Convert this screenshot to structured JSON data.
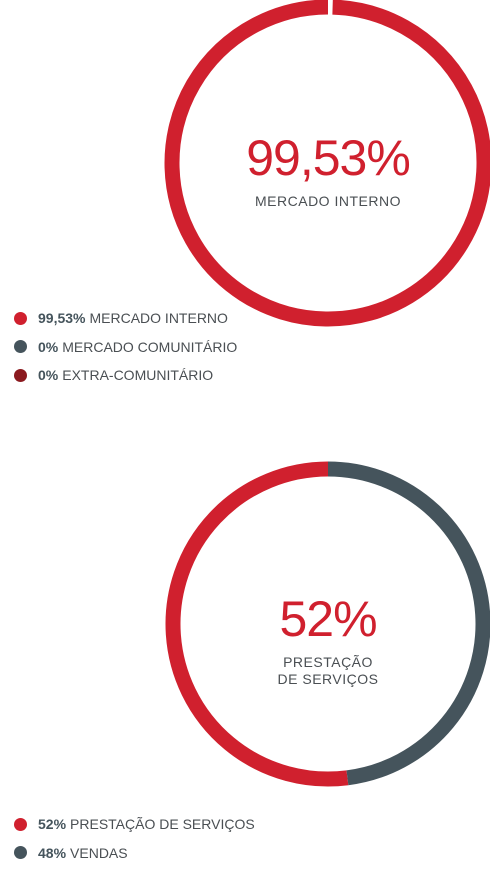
{
  "chart_data": [
    {
      "type": "donut",
      "categories": [
        "MERCADO INTERNO",
        "MERCADO COMUNITÁRIO",
        "EXTRA-COMUNITÁRIO"
      ],
      "values": [
        99.53,
        0,
        0
      ],
      "value_labels": [
        "99,53%",
        "0%",
        "0%"
      ],
      "colors": [
        "#d0202e",
        "#45545c",
        "#8b1a1f"
      ]
    },
    {
      "type": "donut",
      "categories": [
        "PRESTAÇÃO DE SERVIÇOS",
        "VENDAS"
      ],
      "values": [
        52,
        48
      ],
      "value_labels": [
        "52%",
        "48%"
      ],
      "colors": [
        "#d0202e",
        "#45545c"
      ]
    }
  ]
}
